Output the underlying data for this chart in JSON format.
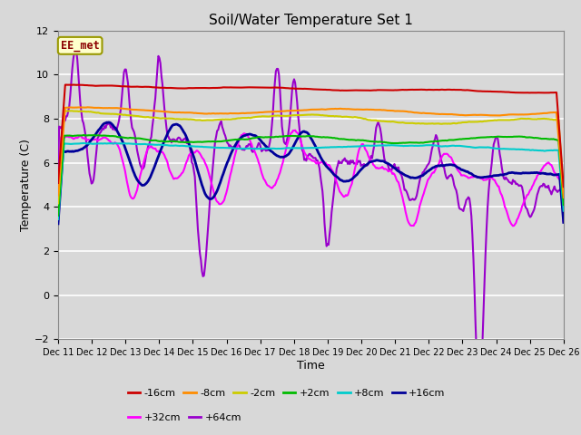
{
  "title": "Soil/Water Temperature Set 1",
  "xlabel": "Time",
  "ylabel": "Temperature (C)",
  "xlim": [
    0,
    15
  ],
  "ylim": [
    -2,
    12
  ],
  "yticks": [
    -2,
    0,
    2,
    4,
    6,
    8,
    10,
    12
  ],
  "xtick_labels": [
    "Dec 11",
    "Dec 12",
    "Dec 13",
    "Dec 14",
    "Dec 15",
    "Dec 16",
    "Dec 17",
    "Dec 18",
    "Dec 19",
    "Dec 20",
    "Dec 21",
    "Dec 22",
    "Dec 23",
    "Dec 24",
    "Dec 25",
    "Dec 26"
  ],
  "fig_bg_color": "#d8d8d8",
  "plot_bg_color": "#d8d8d8",
  "grid_color": "#ffffff",
  "annotation_text": "EE_met",
  "annotation_color": "#8b0000",
  "annotation_bg": "#ffffcc",
  "annotation_edge": "#999900",
  "series": {
    "-16cm": {
      "color": "#cc0000",
      "lw": 1.5
    },
    "-8cm": {
      "color": "#ff8c00",
      "lw": 1.5
    },
    "-2cm": {
      "color": "#cccc00",
      "lw": 1.5
    },
    "+2cm": {
      "color": "#00bb00",
      "lw": 1.5
    },
    "+8cm": {
      "color": "#00cccc",
      "lw": 1.5
    },
    "+16cm": {
      "color": "#000099",
      "lw": 2.0
    },
    "+32cm": {
      "color": "#ff00ff",
      "lw": 1.5
    },
    "+64cm": {
      "color": "#9900cc",
      "lw": 1.5
    }
  },
  "legend_entries": [
    {
      "label": "-16cm",
      "color": "#cc0000"
    },
    {
      "label": "-8cm",
      "color": "#ff8c00"
    },
    {
      "label": "-2cm",
      "color": "#cccc00"
    },
    {
      "label": "+2cm",
      "color": "#00bb00"
    },
    {
      "label": "+8cm",
      "color": "#00cccc"
    },
    {
      "label": "+16cm",
      "color": "#000099"
    },
    {
      "label": "+32cm",
      "color": "#ff00ff"
    },
    {
      "label": "+64cm",
      "color": "#9900cc"
    }
  ]
}
